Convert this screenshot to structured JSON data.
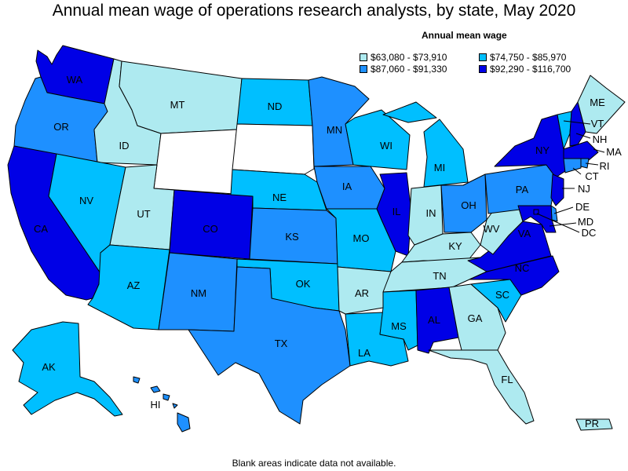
{
  "title": "Annual mean wage of operations research analysts, by state, May 2020",
  "legend": {
    "title": "Annual mean wage",
    "items": [
      {
        "label": "$63,080 - $73,910",
        "color": "#aeeaf0"
      },
      {
        "label": "$74,750 - $85,970",
        "color": "#00bfff"
      },
      {
        "label": "$87,060 - $91,330",
        "color": "#1e90ff"
      },
      {
        "label": "$92,290 - $116,700",
        "color": "#0000e6"
      }
    ]
  },
  "footnote": "Blank areas indicate data not available.",
  "no_data_color": "#ffffff",
  "states": {
    "WA": {
      "label": "WA",
      "tier": 3
    },
    "OR": {
      "label": "OR",
      "tier": 2
    },
    "CA": {
      "label": "CA",
      "tier": 3
    },
    "ID": {
      "label": "ID",
      "tier": 0
    },
    "NV": {
      "label": "NV",
      "tier": 1
    },
    "MT": {
      "label": "MT",
      "tier": 0
    },
    "WY": {
      "label": "",
      "tier": null
    },
    "UT": {
      "label": "UT",
      "tier": 0
    },
    "AZ": {
      "label": "AZ",
      "tier": 1
    },
    "CO": {
      "label": "CO",
      "tier": 3
    },
    "NM": {
      "label": "NM",
      "tier": 2
    },
    "ND": {
      "label": "ND",
      "tier": 1
    },
    "SD": {
      "label": "",
      "tier": null
    },
    "NE": {
      "label": "NE",
      "tier": 1
    },
    "KS": {
      "label": "KS",
      "tier": 2
    },
    "OK": {
      "label": "OK",
      "tier": 1
    },
    "TX": {
      "label": "TX",
      "tier": 2
    },
    "MN": {
      "label": "MN",
      "tier": 2
    },
    "IA": {
      "label": "IA",
      "tier": 2
    },
    "MO": {
      "label": "MO",
      "tier": 1
    },
    "AR": {
      "label": "AR",
      "tier": 0
    },
    "LA": {
      "label": "LA",
      "tier": 1
    },
    "WI": {
      "label": "WI",
      "tier": 1
    },
    "IL": {
      "label": "IL",
      "tier": 3
    },
    "MI": {
      "label": "MI",
      "tier": 1
    },
    "IN": {
      "label": "IN",
      "tier": 0
    },
    "OH": {
      "label": "OH",
      "tier": 2
    },
    "KY": {
      "label": "KY",
      "tier": 0
    },
    "TN": {
      "label": "TN",
      "tier": 0
    },
    "MS": {
      "label": "MS",
      "tier": 1
    },
    "AL": {
      "label": "AL",
      "tier": 3
    },
    "GA": {
      "label": "GA",
      "tier": 0
    },
    "FL": {
      "label": "FL",
      "tier": 0
    },
    "SC": {
      "label": "SC",
      "tier": 1
    },
    "NC": {
      "label": "NC",
      "tier": 3
    },
    "VA": {
      "label": "VA",
      "tier": 3
    },
    "WV": {
      "label": "WV",
      "tier": 0
    },
    "PA": {
      "label": "PA",
      "tier": 2
    },
    "NY": {
      "label": "NY",
      "tier": 3
    },
    "VT": {
      "label": "VT",
      "tier": 1
    },
    "NH": {
      "label": "NH",
      "tier": 3
    },
    "ME": {
      "label": "ME",
      "tier": 0
    },
    "MA": {
      "label": "MA",
      "tier": 3
    },
    "RI": {
      "label": "RI",
      "tier": 2
    },
    "CT": {
      "label": "CT",
      "tier": 2
    },
    "NJ": {
      "label": "NJ",
      "tier": 3
    },
    "DE": {
      "label": "DE",
      "tier": 2
    },
    "MD": {
      "label": "MD",
      "tier": 3
    },
    "DC": {
      "label": "DC",
      "tier": 3
    },
    "AK": {
      "label": "AK",
      "tier": 1
    },
    "HI": {
      "label": "HI",
      "tier": 2
    },
    "PR": {
      "label": "PR",
      "tier": 0
    }
  }
}
